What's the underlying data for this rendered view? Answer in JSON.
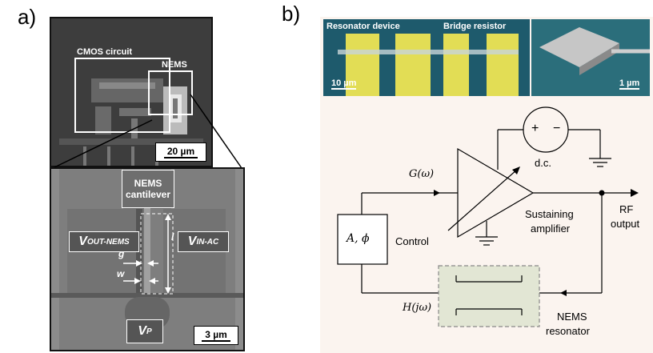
{
  "panels": {
    "a_label": "a)",
    "b_label": "b)"
  },
  "top_sem": {
    "cmos_label": "CMOS circuit",
    "nems_label": "NEMS",
    "scale": "20 µm"
  },
  "bottom_sem": {
    "cantilever_line1": "NEMS",
    "cantilever_line2": "cantilever",
    "vout_main": "V",
    "vout_sub": "OUT-NEMS",
    "vin_main": "V",
    "vin_sub": "IN-AC",
    "g": "g",
    "w": "w",
    "l": "l",
    "vp_main": "V",
    "vp_sub": "P",
    "scale": "3 µm"
  },
  "micrograph_b": {
    "resonator": "Resonator device",
    "bridge": "Bridge resistor",
    "scale_left": "10 µm",
    "scale_right": "1 µm"
  },
  "circuit": {
    "plus": "+",
    "minus": "−",
    "dc": "d.c.",
    "g_omega": "G(ω)",
    "sustaining": "Sustaining",
    "amplifier": "amplifier",
    "rf": "RF",
    "output": "output",
    "a_phi": "A, ϕ",
    "control": "Control",
    "h_jw": "H(jω)",
    "nems": "NEMS",
    "resonator": "resonator"
  }
}
